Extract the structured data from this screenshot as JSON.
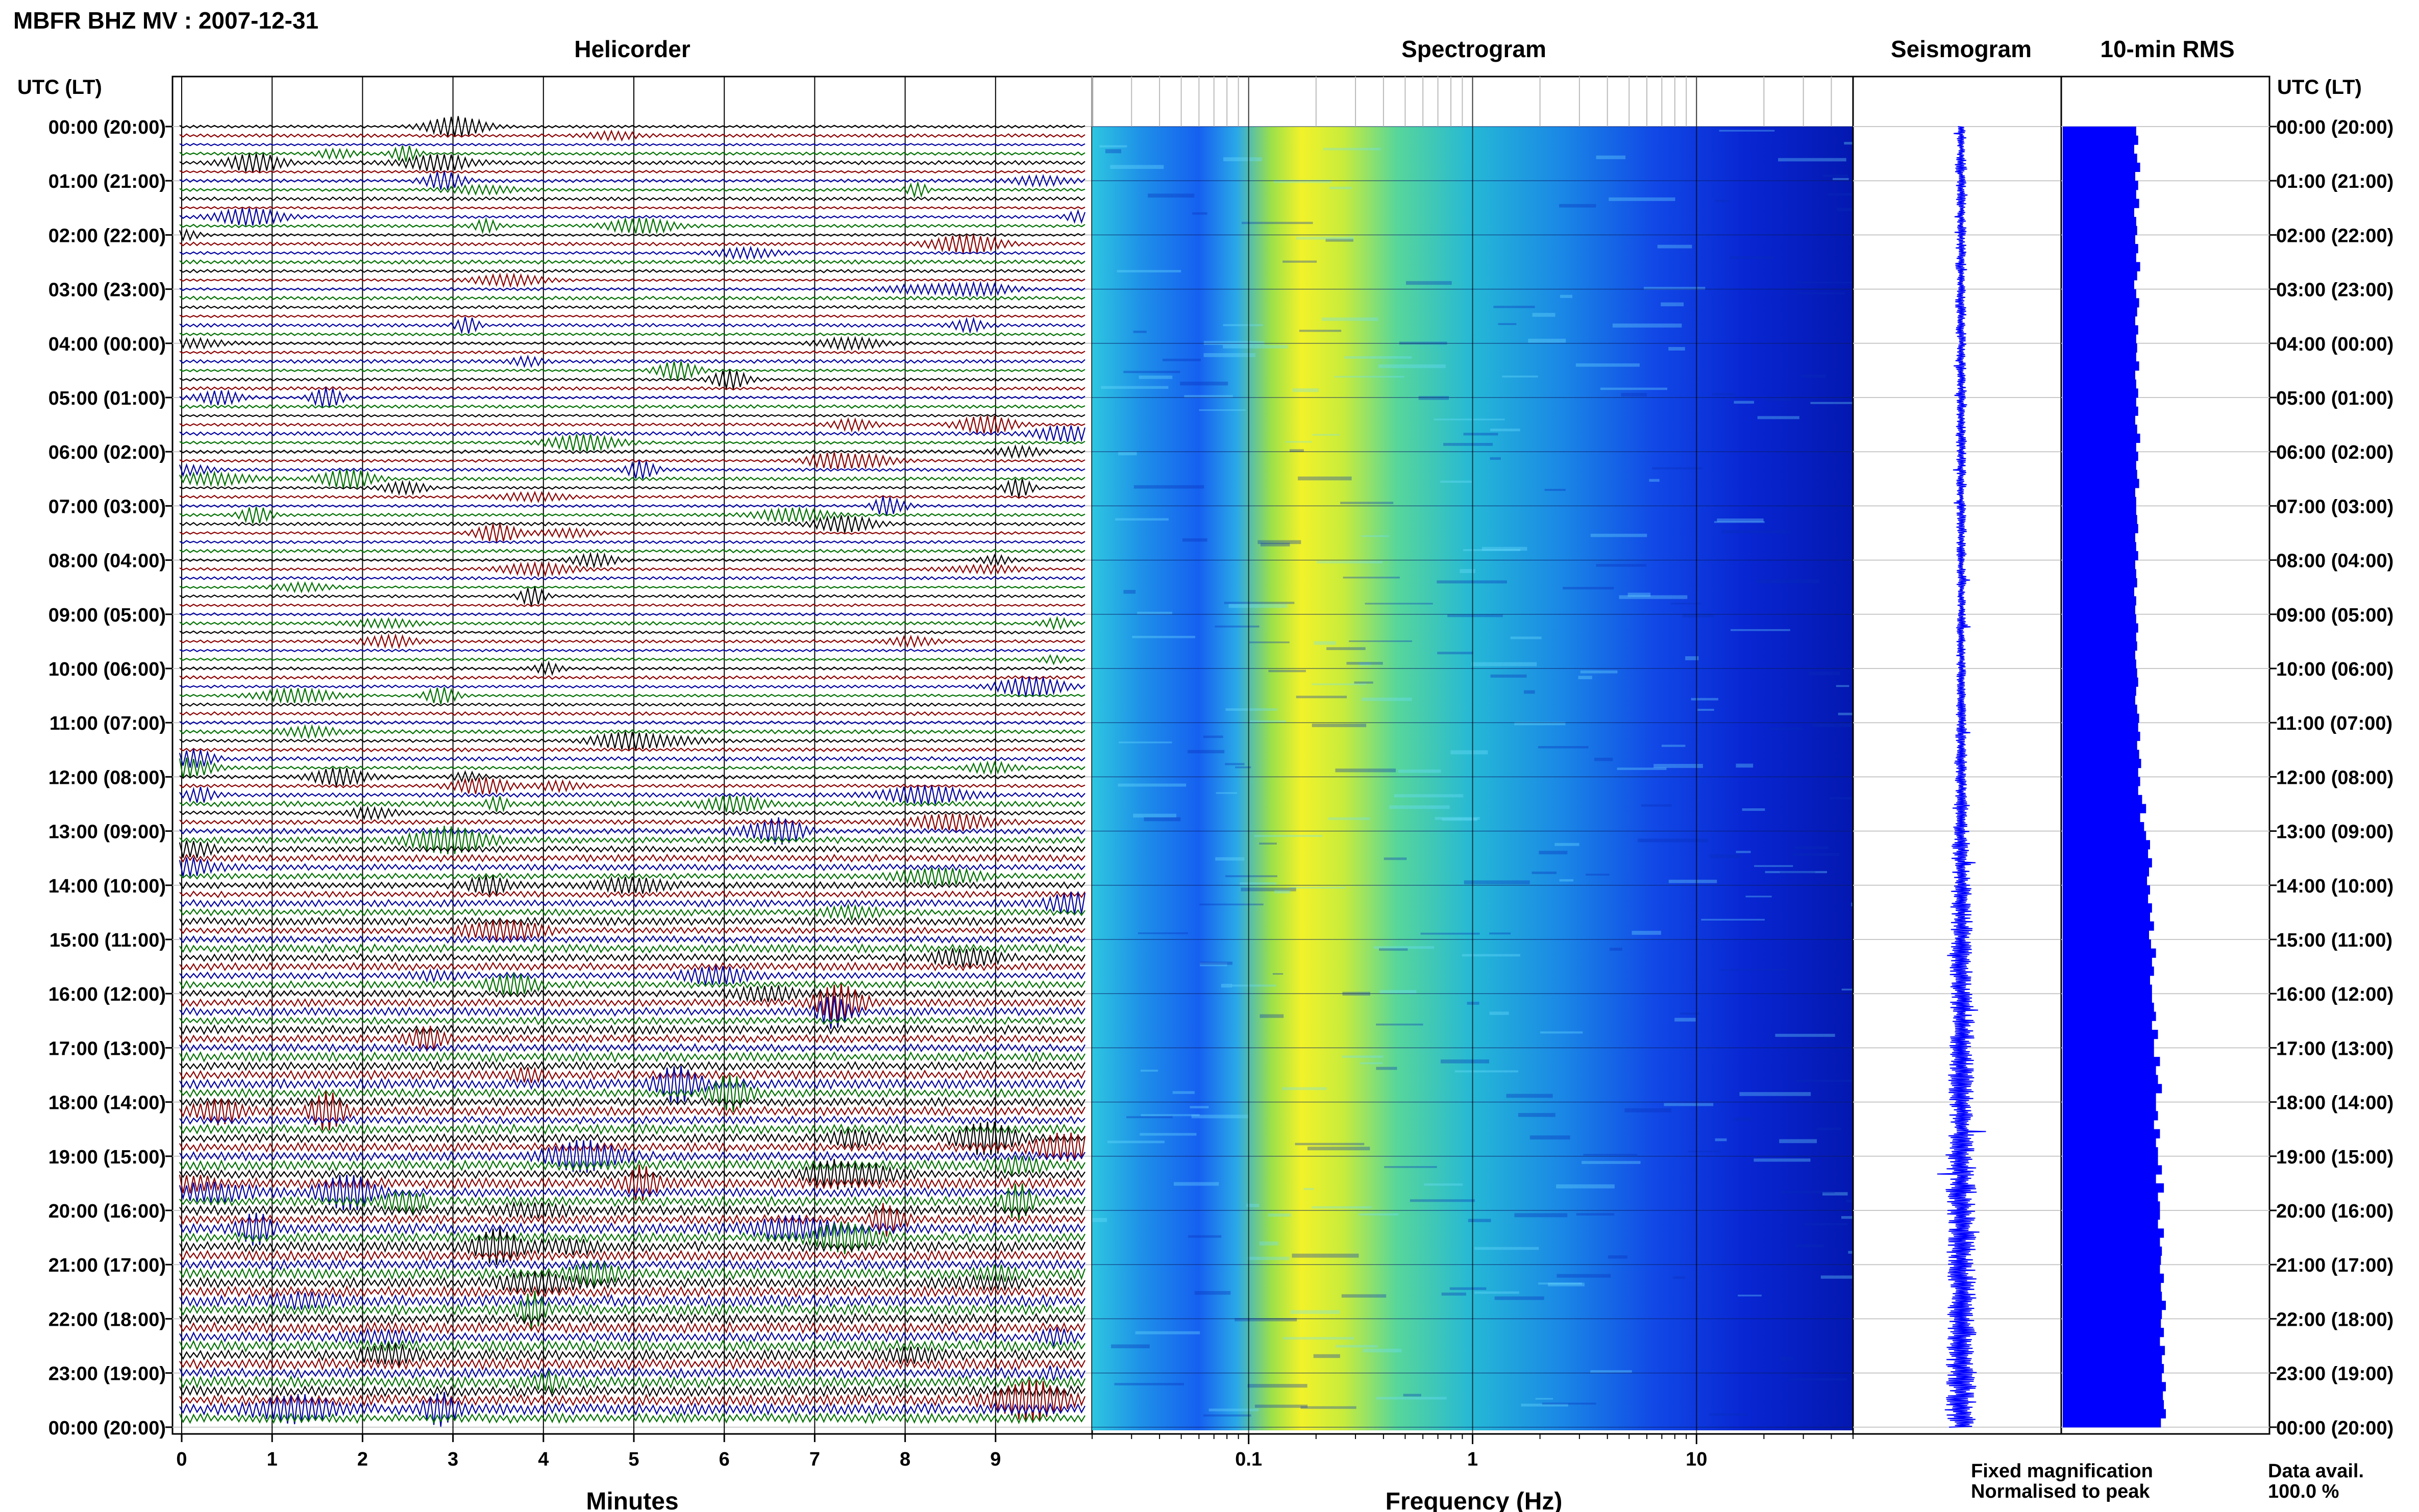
{
  "page": {
    "title": "MBFR BHZ MV : 2007-12-31",
    "timezone_label_left": "UTC (LT)",
    "timezone_label_right": "UTC (LT)"
  },
  "panels": {
    "helicorder": {
      "title": "Helicorder",
      "xlabel": "Minutes",
      "xticks": [
        0,
        1,
        2,
        3,
        4,
        5,
        6,
        7,
        8,
        9
      ],
      "xlim": [
        0,
        10
      ],
      "lines_per_hour": 6,
      "trace_colors": [
        "#000000",
        "#8b0000",
        "#0000a0",
        "#007000"
      ]
    },
    "spectrogram": {
      "title": "Spectrogram",
      "xlabel": "Frequency (Hz)",
      "xscale": "log",
      "xlim": [
        0.02,
        50
      ],
      "xticks": [
        "0.1",
        "1",
        "10"
      ],
      "xtick_values": [
        0.1,
        1,
        10
      ]
    },
    "seismogram": {
      "title": "Seismogram",
      "color": "#0000ff"
    },
    "rms": {
      "title": "10-min RMS",
      "color": "#0000ff"
    }
  },
  "time_labels": [
    "00:00 (20:00)",
    "01:00 (21:00)",
    "02:00 (22:00)",
    "03:00 (23:00)",
    "04:00 (00:00)",
    "05:00 (01:00)",
    "06:00 (02:00)",
    "07:00 (03:00)",
    "08:00 (04:00)",
    "09:00 (05:00)",
    "10:00 (06:00)",
    "11:00 (07:00)",
    "12:00 (08:00)",
    "13:00 (09:00)",
    "14:00 (10:00)",
    "15:00 (11:00)",
    "16:00 (12:00)",
    "17:00 (13:00)",
    "18:00 (14:00)",
    "19:00 (15:00)",
    "20:00 (16:00)",
    "21:00 (17:00)",
    "22:00 (18:00)",
    "23:00 (19:00)",
    "00:00 (20:00)"
  ],
  "legend": {
    "fixed": "Fixed magnification",
    "fixed_color": "#0000ff",
    "normalised": "Normalised to peak",
    "normalised_color": "#ff0000"
  },
  "data_avail": {
    "label": "Data avail.",
    "value": "100.0 %"
  },
  "chart_data": {
    "type": "heatmap",
    "title": "MBFR BHZ MV : 2007-12-31",
    "y_axis": "time of day (UTC), 00:00 to 24:00, 10-minute rows",
    "rms_10min_relative": [
      0.7,
      0.72,
      0.68,
      0.71,
      0.74,
      0.69,
      0.72,
      0.7,
      0.73,
      0.68,
      0.7,
      0.71,
      0.69,
      0.72,
      0.7,
      0.74,
      0.71,
      0.68,
      0.7,
      0.73,
      0.71,
      0.69,
      0.72,
      0.7,
      0.71,
      0.7,
      0.73,
      0.69,
      0.7,
      0.72,
      0.7,
      0.72,
      0.69,
      0.71,
      0.74,
      0.7,
      0.72,
      0.7,
      0.71,
      0.73,
      0.69,
      0.7,
      0.7,
      0.71,
      0.72,
      0.69,
      0.7,
      0.72,
      0.69,
      0.7,
      0.71,
      0.68,
      0.7,
      0.69,
      0.7,
      0.72,
      0.7,
      0.71,
      0.69,
      0.7,
      0.71,
      0.72,
      0.7,
      0.69,
      0.71,
      0.73,
      0.72,
      0.74,
      0.71,
      0.73,
      0.75,
      0.72,
      0.74,
      0.72,
      0.76,
      0.8,
      0.74,
      0.78,
      0.8,
      0.84,
      0.82,
      0.86,
      0.83,
      0.81,
      0.84,
      0.82,
      0.86,
      0.84,
      0.88,
      0.83,
      0.85,
      0.9,
      0.86,
      0.88,
      0.84,
      0.86,
      0.86,
      0.88,
      0.9,
      0.86,
      0.92,
      0.88,
      0.88,
      0.94,
      0.9,
      0.92,
      0.96,
      0.9,
      0.9,
      0.92,
      0.88,
      0.94,
      0.9,
      0.92,
      0.92,
      0.96,
      0.9,
      0.98,
      0.92,
      0.94,
      0.94,
      0.92,
      0.98,
      0.94,
      0.96,
      0.95,
      0.94,
      0.98,
      0.95,
      0.96,
      1.0,
      0.96,
      0.95,
      0.98,
      0.94,
      0.99,
      0.96,
      0.98,
      0.96,
      1.0,
      0.97,
      0.98,
      1.0,
      0.95
    ]
  }
}
